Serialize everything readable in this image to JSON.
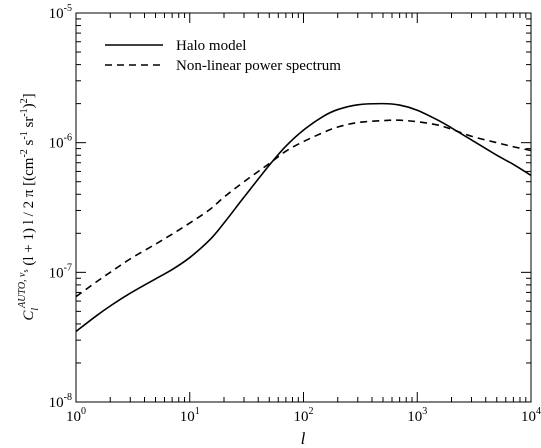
{
  "chart_data": {
    "type": "line",
    "xscale": "log",
    "yscale": "log",
    "xlim": [
      1,
      10000
    ],
    "ylim": [
      1e-08,
      1e-05
    ],
    "xlabel": "l",
    "ylabel": "C_l^{AUTO, ν_s} (l + 1) l / 2 π [(cm^-2 s^-1 sr^-1)^2]",
    "x_ticks": [
      {
        "base": "10",
        "exp": "0",
        "value": 1
      },
      {
        "base": "10",
        "exp": "1",
        "value": 10
      },
      {
        "base": "10",
        "exp": "2",
        "value": 100
      },
      {
        "base": "10",
        "exp": "3",
        "value": 1000
      },
      {
        "base": "10",
        "exp": "4",
        "value": 10000
      }
    ],
    "y_ticks": [
      {
        "base": "10",
        "exp": "-8",
        "value": 1e-08
      },
      {
        "base": "10",
        "exp": "-7",
        "value": 1e-07
      },
      {
        "base": "10",
        "exp": "-6",
        "value": 1e-06
      },
      {
        "base": "10",
        "exp": "-5",
        "value": 1e-05
      }
    ],
    "legend_position": "top-left",
    "grid": false,
    "series": [
      {
        "name": "Halo model",
        "style": "solid",
        "color": "#000000",
        "x": [
          1,
          1.5,
          2,
          3,
          5,
          7,
          10,
          15,
          20,
          30,
          50,
          70,
          100,
          150,
          200,
          300,
          500,
          700,
          1000,
          1500,
          2000,
          3000,
          5000,
          7000,
          10000
        ],
        "y": [
          3.5e-08,
          4.6e-08,
          5.5e-08,
          6.9e-08,
          8.9e-08,
          1.05e-07,
          1.3e-07,
          1.78e-07,
          2.4e-07,
          3.8e-07,
          6.7e-07,
          9.4e-07,
          1.25e-06,
          1.6e-06,
          1.8e-06,
          1.96e-06,
          2e-06,
          1.95e-06,
          1.78e-06,
          1.5e-06,
          1.3e-06,
          1.05e-06,
          8e-07,
          6.8e-07,
          5.6e-07
        ]
      },
      {
        "name": "Non-linear power spectrum",
        "style": "dashed",
        "color": "#000000",
        "x": [
          1,
          1.5,
          2,
          3,
          5,
          7,
          10,
          15,
          20,
          30,
          50,
          70,
          100,
          150,
          200,
          300,
          500,
          700,
          1000,
          1500,
          2000,
          3000,
          5000,
          7000,
          10000
        ],
        "y": [
          6.5e-08,
          8.4e-08,
          1e-07,
          1.27e-07,
          1.65e-07,
          1.97e-07,
          2.4e-07,
          3.05e-07,
          3.8e-07,
          5e-07,
          6.9e-07,
          8.6e-07,
          1.02e-06,
          1.2e-06,
          1.32e-06,
          1.43e-06,
          1.48e-06,
          1.49e-06,
          1.45e-06,
          1.37e-06,
          1.27e-06,
          1.12e-06,
          1e-06,
          9.3e-07,
          8.7e-07
        ]
      }
    ]
  }
}
